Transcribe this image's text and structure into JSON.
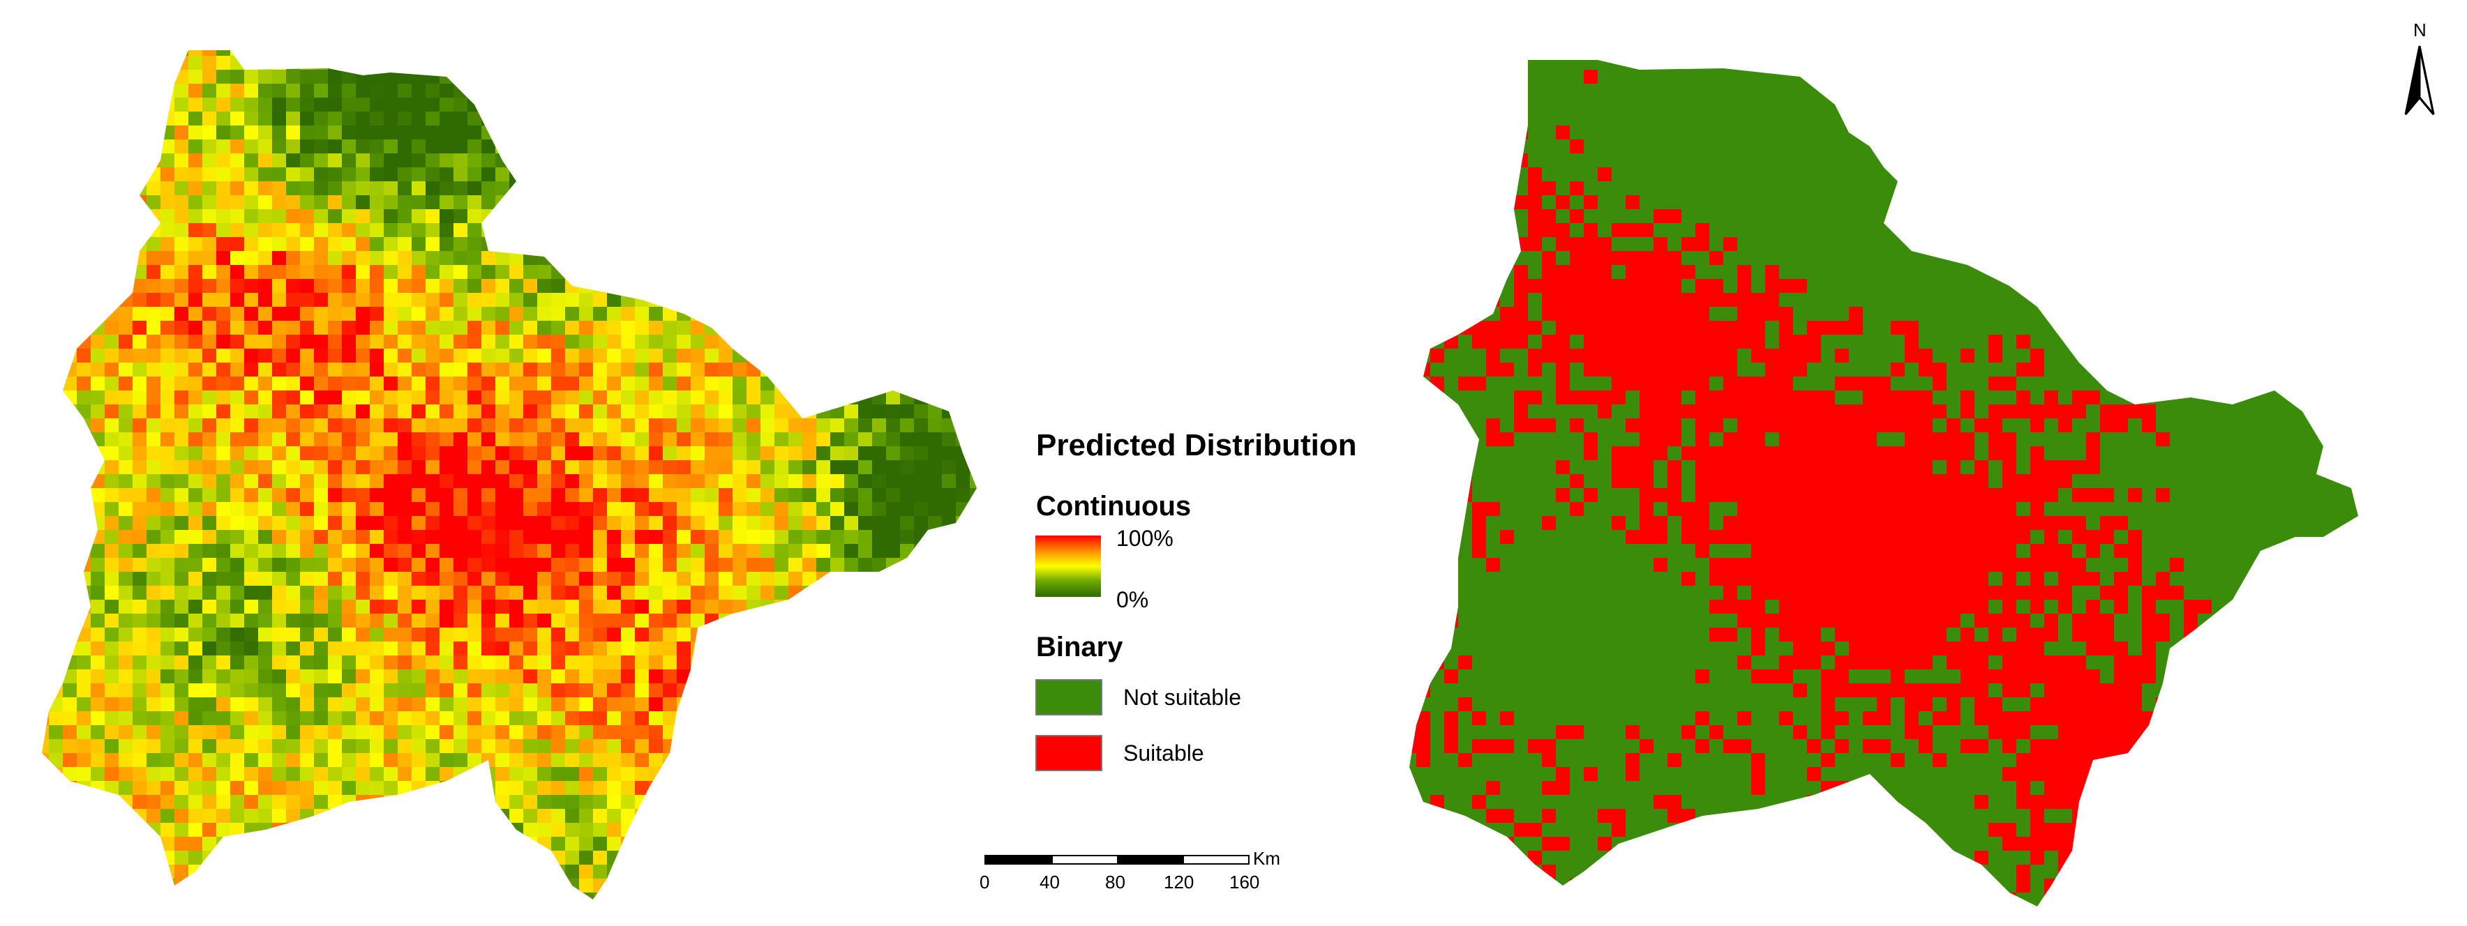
{
  "legend": {
    "title": "Predicted Distribution",
    "continuous": {
      "heading": "Continuous",
      "max_label": "100%",
      "min_label": "0%",
      "gradient_colors": [
        "#ff0000",
        "#ff8c00",
        "#ffff00",
        "#6aa700",
        "#2f6b00"
      ]
    },
    "binary": {
      "heading": "Binary",
      "classes": [
        {
          "label": "Not suitable",
          "color": "#3b8c0a"
        },
        {
          "label": "Suitable",
          "color": "#ff0000"
        }
      ]
    }
  },
  "scale_bar": {
    "unit": "Km",
    "ticks": [
      "0",
      "40",
      "80",
      "120",
      "160"
    ]
  },
  "north_arrow": {
    "label": "N"
  },
  "maps": [
    {
      "name": "continuous-map",
      "style": "continuous"
    },
    {
      "name": "binary-map",
      "style": "binary"
    }
  ]
}
